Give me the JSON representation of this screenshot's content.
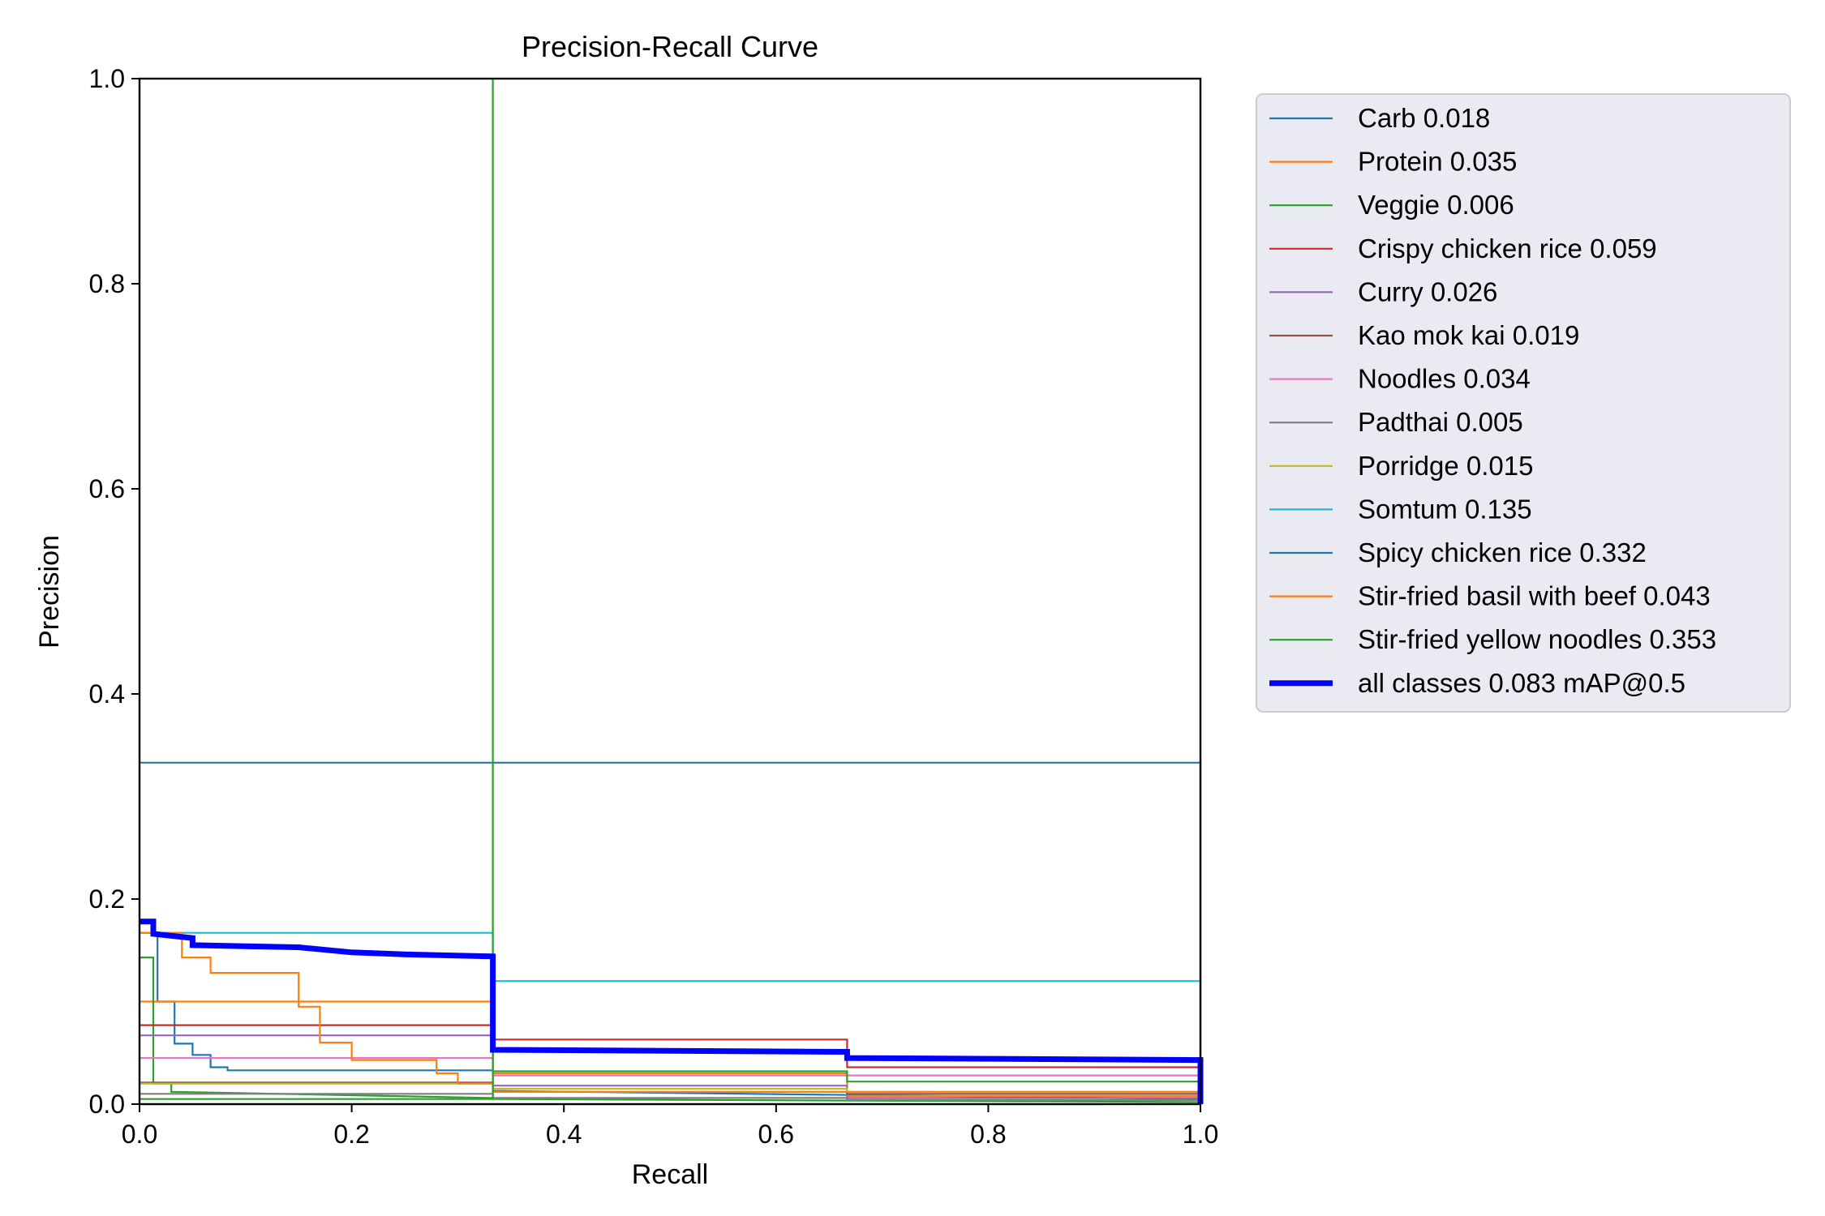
{
  "chart_data": {
    "type": "line",
    "title": "Precision-Recall Curve",
    "xlabel": "Recall",
    "ylabel": "Precision",
    "xlim": [
      0,
      1
    ],
    "ylim": [
      0,
      1
    ],
    "xticks": [
      "0.0",
      "0.2",
      "0.4",
      "0.6",
      "0.8",
      "1.0"
    ],
    "yticks": [
      "0.0",
      "0.2",
      "0.4",
      "0.6",
      "0.8",
      "1.0"
    ],
    "grid": false,
    "legend_position": "outside-right-top",
    "series": [
      {
        "name": "Carb 0.018",
        "color": "#1f77b4",
        "x": [
          0,
          0.017,
          0.017,
          0.033,
          0.033,
          0.05,
          0.05,
          0.067,
          0.067,
          0.083,
          0.083,
          0.333,
          0.333,
          1.0
        ],
        "y": [
          0.167,
          0.167,
          0.1,
          0.1,
          0.059,
          0.059,
          0.048,
          0.048,
          0.036,
          0.036,
          0.033,
          0.033,
          0.013,
          0.005
        ]
      },
      {
        "name": "Protein 0.035",
        "color": "#ff7f0e",
        "x": [
          0,
          0.333,
          0.333,
          0.667,
          0.667,
          1.0
        ],
        "y": [
          0.1,
          0.1,
          0.03,
          0.03,
          0.008,
          0.008
        ]
      },
      {
        "name": "Veggie 0.006",
        "color": "#2ca02c",
        "x": [
          0,
          0.013,
          0.013,
          0.03,
          0.03,
          0.333,
          0.333,
          1.0
        ],
        "y": [
          0.143,
          0.143,
          0.02,
          0.02,
          0.012,
          0.006,
          0.005,
          0.002
        ]
      },
      {
        "name": "Crispy chicken rice 0.059",
        "color": "#d62728",
        "x": [
          0,
          0.333,
          0.333,
          0.667,
          0.667,
          1.0
        ],
        "y": [
          0.077,
          0.077,
          0.063,
          0.063,
          0.036,
          0.036
        ]
      },
      {
        "name": "Curry 0.026",
        "color": "#9467bd",
        "x": [
          0,
          0.333,
          0.333,
          0.667,
          0.667,
          1.0
        ],
        "y": [
          0.067,
          0.067,
          0.018,
          0.018,
          0.006,
          0.006
        ]
      },
      {
        "name": "Kao mok kai 0.019",
        "color": "#8c564b",
        "x": [
          0,
          0.333,
          0.333,
          0.667,
          0.667,
          1.0
        ],
        "y": [
          0.021,
          0.021,
          0.012,
          0.012,
          0.01,
          0.01
        ]
      },
      {
        "name": "Noodles 0.034",
        "color": "#e377c2",
        "x": [
          0,
          0.333,
          0.333,
          0.667,
          0.667,
          1.0
        ],
        "y": [
          0.045,
          0.045,
          0.028,
          0.028,
          0.028,
          0.028
        ]
      },
      {
        "name": "Padthai 0.005",
        "color": "#7f7f7f",
        "x": [
          0,
          0.333,
          0.333,
          0.667,
          0.667,
          1.0
        ],
        "y": [
          0.01,
          0.01,
          0.006,
          0.006,
          0.004,
          0.004
        ]
      },
      {
        "name": "Porridge 0.015",
        "color": "#bcbd22",
        "x": [
          0,
          0.333,
          0.333,
          0.667,
          0.667,
          1.0
        ],
        "y": [
          0.02,
          0.02,
          0.015,
          0.015,
          0.012,
          0.012
        ]
      },
      {
        "name": "Somtum 0.135",
        "color": "#17becf",
        "x": [
          0,
          0.333,
          0.333,
          1.0
        ],
        "y": [
          0.167,
          0.167,
          0.12,
          0.12
        ]
      },
      {
        "name": "Spicy chicken rice 0.332",
        "color": "#1f77b4",
        "x": [
          0,
          1.0,
          1.0
        ],
        "y": [
          0.333,
          0.333,
          0.0
        ]
      },
      {
        "name": "Stir-fried basil with beef 0.043",
        "color": "#ff7f0e",
        "x": [
          0,
          0.04,
          0.04,
          0.067,
          0.067,
          0.15,
          0.15,
          0.17,
          0.17,
          0.2,
          0.2,
          0.28,
          0.28,
          0.3,
          0.3,
          0.333,
          0.333,
          1.0
        ],
        "y": [
          0.167,
          0.167,
          0.143,
          0.143,
          0.128,
          0.128,
          0.095,
          0.095,
          0.06,
          0.06,
          0.043,
          0.043,
          0.03,
          0.03,
          0.02,
          0.02,
          0.012,
          0.012
        ]
      },
      {
        "name": "Stir-fried yellow noodles 0.353",
        "color": "#2ca02c",
        "x": [
          0,
          0.333,
          0.333,
          0.333,
          0.667,
          0.667,
          1.0
        ],
        "y": [
          0.005,
          0.005,
          1.0,
          0.032,
          0.032,
          0.022,
          0.022
        ]
      },
      {
        "name": "all classes 0.083 mAP@0.5",
        "color": "#0000ff",
        "bold": true,
        "x": [
          0,
          0.013,
          0.013,
          0.05,
          0.05,
          0.1,
          0.15,
          0.2,
          0.25,
          0.333,
          0.333,
          0.667,
          0.667,
          1.0,
          1.0
        ],
        "y": [
          0.178,
          0.178,
          0.166,
          0.162,
          0.155,
          0.154,
          0.153,
          0.148,
          0.146,
          0.144,
          0.053,
          0.051,
          0.045,
          0.043,
          0.0
        ]
      }
    ]
  }
}
